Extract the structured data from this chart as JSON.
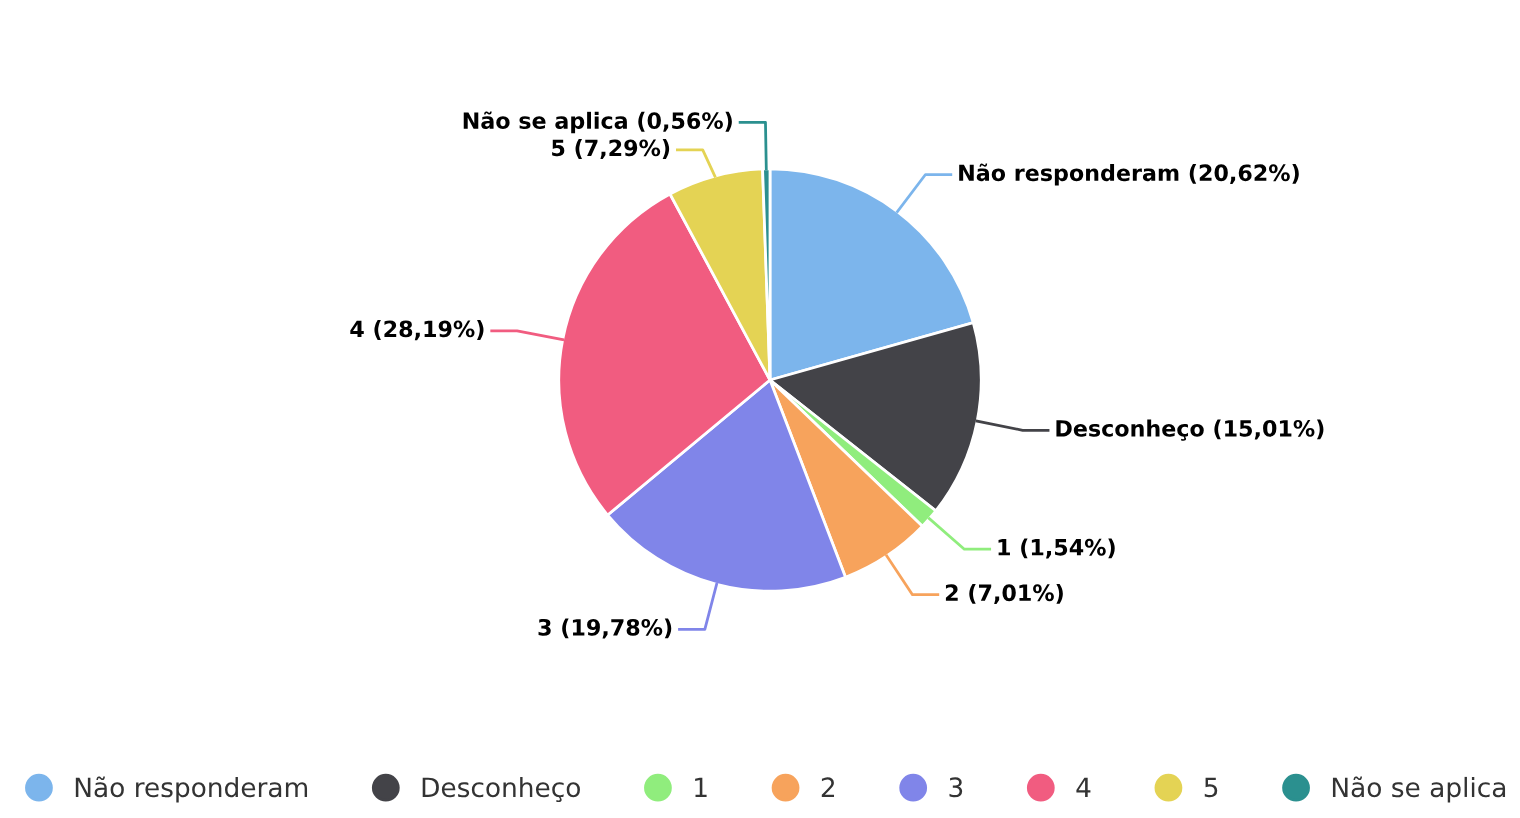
{
  "chart_data": {
    "type": "pie",
    "categories": [
      "Não responderam",
      "Desconheço",
      "1",
      "2",
      "3",
      "4",
      "5",
      "Não se aplica"
    ],
    "values": [
      20.62,
      15.01,
      1.54,
      7.01,
      19.78,
      28.19,
      7.29,
      0.56
    ],
    "colors": [
      "#7cb5ec",
      "#434348",
      "#90ed7d",
      "#f7a35c",
      "#8085e9",
      "#f15c80",
      "#e4d354",
      "#2b908f"
    ],
    "value_labels": [
      "Não responderam (20,62%)",
      "Desconheço (15,01%)",
      "1 (1,54%)",
      "2 (7,01%)",
      "3 (19,78%)",
      "4 (28,19%)",
      "5 (7,29%)",
      "Não se aplica (0,56%)"
    ],
    "legend": "bottom"
  }
}
